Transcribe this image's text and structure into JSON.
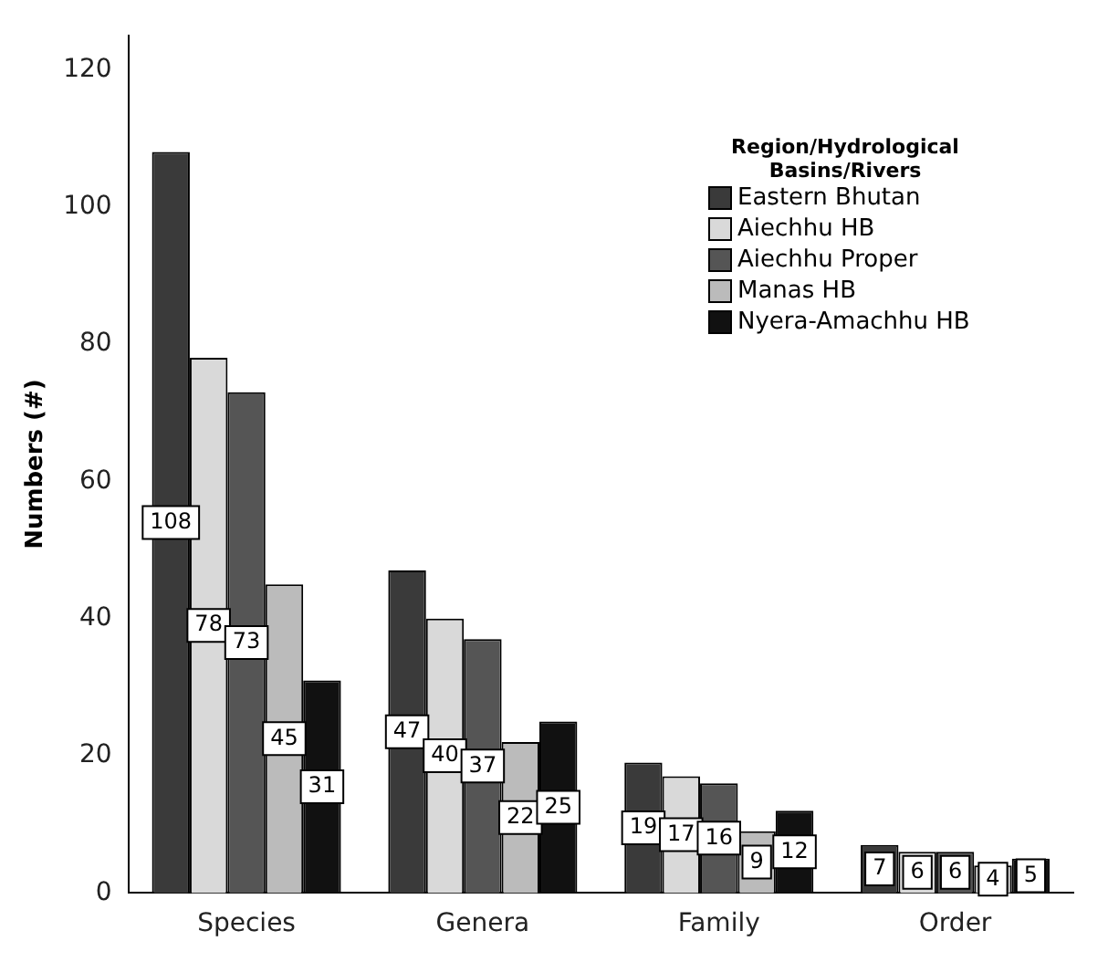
{
  "chart_data": {
    "type": "bar",
    "ylabel": "Numbers (#)",
    "legend_title": "Region/Hydrological Basins/Rivers",
    "categories": [
      "Species",
      "Genera",
      "Family",
      "Order"
    ],
    "series": [
      {
        "name": "Eastern Bhutan",
        "color": "#3a3a3a",
        "values": [
          108,
          47,
          19,
          7
        ]
      },
      {
        "name": "Aiechhu HB",
        "color": "#d9d9d9",
        "values": [
          78,
          40,
          17,
          6
        ]
      },
      {
        "name": "Aiechhu Proper",
        "color": "#555555",
        "values": [
          73,
          37,
          16,
          6
        ]
      },
      {
        "name": "Manas HB",
        "color": "#bbbbbb",
        "values": [
          45,
          22,
          9,
          4
        ]
      },
      {
        "name": "Nyera-Amachhu HB",
        "color": "#111111",
        "values": [
          31,
          25,
          12,
          5
        ]
      }
    ],
    "ylim": [
      0,
      125
    ],
    "yticks": [
      0,
      20,
      40,
      60,
      80,
      100,
      120
    ],
    "grid": false,
    "legend": "top right",
    "data_labels": true
  }
}
